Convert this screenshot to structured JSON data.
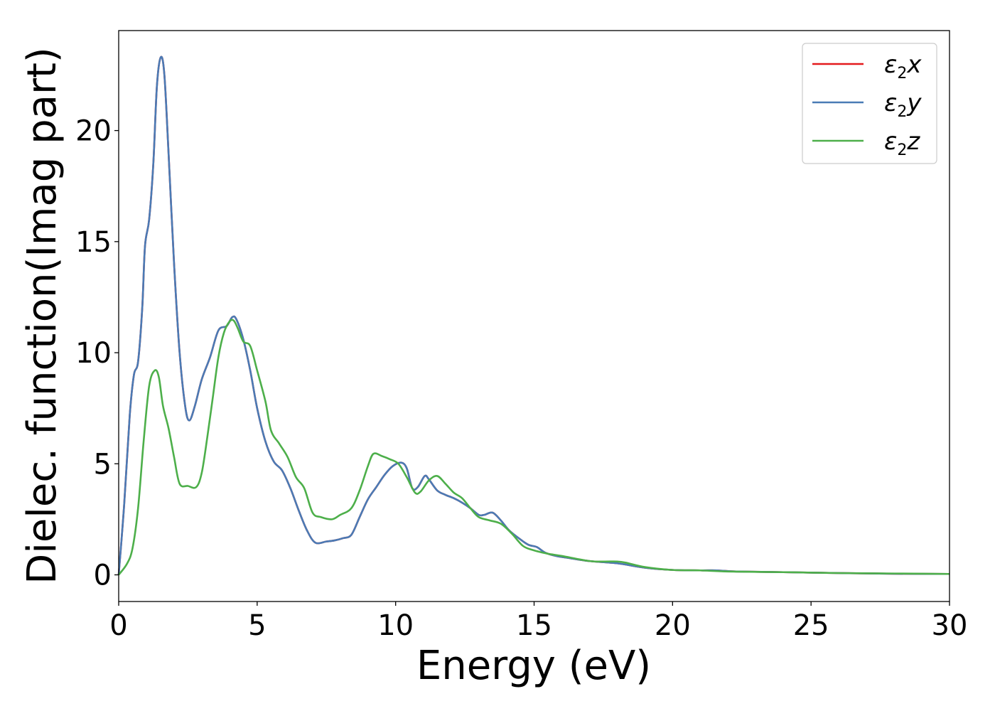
{
  "chart_data": {
    "type": "line",
    "xlabel": "Energy (eV)",
    "ylabel": "Dielec. function(Imag part)",
    "xlim": [
      0,
      30
    ],
    "ylim": [
      -1.2,
      24.5
    ],
    "xticks": [
      0,
      5,
      10,
      15,
      20,
      25,
      30
    ],
    "yticks": [
      0,
      5,
      10,
      15,
      20
    ],
    "grid": false,
    "legend_position": "top-right",
    "series": [
      {
        "name": "ε2x",
        "legend_main": "ε",
        "legend_sub": "2",
        "legend_var": "x",
        "color": "#e41a1c",
        "points": [
          [
            0,
            0
          ],
          [
            0.2,
            3.2
          ],
          [
            0.4,
            7.2
          ],
          [
            0.55,
            9.0
          ],
          [
            0.7,
            9.6
          ],
          [
            0.85,
            12.0
          ],
          [
            0.95,
            14.8
          ],
          [
            1.1,
            16.0
          ],
          [
            1.25,
            18.5
          ],
          [
            1.38,
            22.0
          ],
          [
            1.52,
            23.3
          ],
          [
            1.65,
            22.5
          ],
          [
            1.8,
            19.0
          ],
          [
            2.0,
            14.0
          ],
          [
            2.2,
            10.0
          ],
          [
            2.4,
            7.6
          ],
          [
            2.55,
            6.95
          ],
          [
            2.75,
            7.6
          ],
          [
            3.0,
            8.8
          ],
          [
            3.3,
            9.8
          ],
          [
            3.6,
            11.0
          ],
          [
            3.9,
            11.2
          ],
          [
            4.1,
            11.6
          ],
          [
            4.25,
            11.5
          ],
          [
            4.5,
            10.6
          ],
          [
            4.75,
            9.2
          ],
          [
            5.0,
            7.5
          ],
          [
            5.3,
            6.0
          ],
          [
            5.6,
            5.1
          ],
          [
            5.9,
            4.7
          ],
          [
            6.2,
            3.9
          ],
          [
            6.5,
            2.9
          ],
          [
            6.8,
            2.0
          ],
          [
            7.1,
            1.45
          ],
          [
            7.5,
            1.5
          ],
          [
            7.8,
            1.55
          ],
          [
            8.1,
            1.65
          ],
          [
            8.4,
            1.8
          ],
          [
            8.7,
            2.6
          ],
          [
            9.0,
            3.4
          ],
          [
            9.3,
            3.95
          ],
          [
            9.6,
            4.5
          ],
          [
            9.9,
            4.9
          ],
          [
            10.2,
            5.05
          ],
          [
            10.4,
            4.8
          ],
          [
            10.6,
            3.9
          ],
          [
            10.8,
            3.95
          ],
          [
            11.05,
            4.45
          ],
          [
            11.2,
            4.3
          ],
          [
            11.5,
            3.8
          ],
          [
            11.8,
            3.6
          ],
          [
            12.1,
            3.45
          ],
          [
            12.4,
            3.25
          ],
          [
            12.7,
            3.0
          ],
          [
            13.0,
            2.7
          ],
          [
            13.2,
            2.7
          ],
          [
            13.5,
            2.8
          ],
          [
            13.8,
            2.45
          ],
          [
            14.1,
            2.0
          ],
          [
            14.5,
            1.6
          ],
          [
            14.8,
            1.35
          ],
          [
            15.1,
            1.25
          ],
          [
            15.4,
            1.0
          ],
          [
            15.8,
            0.85
          ],
          [
            16.3,
            0.75
          ],
          [
            17.0,
            0.62
          ],
          [
            18.0,
            0.52
          ],
          [
            19.0,
            0.32
          ],
          [
            20.0,
            0.22
          ],
          [
            21.0,
            0.2
          ],
          [
            21.6,
            0.2
          ],
          [
            22.3,
            0.15
          ],
          [
            24.0,
            0.12
          ],
          [
            26.0,
            0.08
          ],
          [
            28.0,
            0.05
          ],
          [
            30.0,
            0.04
          ]
        ]
      },
      {
        "name": "ε2y",
        "legend_main": "ε",
        "legend_sub": "2",
        "legend_var": "y",
        "color": "#4a7bb5",
        "points": [
          [
            0,
            0
          ],
          [
            0.2,
            3.2
          ],
          [
            0.4,
            7.2
          ],
          [
            0.55,
            9.0
          ],
          [
            0.7,
            9.6
          ],
          [
            0.85,
            12.0
          ],
          [
            0.95,
            14.8
          ],
          [
            1.1,
            16.0
          ],
          [
            1.25,
            18.5
          ],
          [
            1.38,
            22.0
          ],
          [
            1.52,
            23.3
          ],
          [
            1.65,
            22.5
          ],
          [
            1.8,
            19.0
          ],
          [
            2.0,
            14.0
          ],
          [
            2.2,
            10.0
          ],
          [
            2.4,
            7.6
          ],
          [
            2.55,
            6.95
          ],
          [
            2.75,
            7.6
          ],
          [
            3.0,
            8.8
          ],
          [
            3.3,
            9.8
          ],
          [
            3.6,
            11.0
          ],
          [
            3.9,
            11.2
          ],
          [
            4.1,
            11.6
          ],
          [
            4.25,
            11.5
          ],
          [
            4.5,
            10.6
          ],
          [
            4.75,
            9.2
          ],
          [
            5.0,
            7.5
          ],
          [
            5.3,
            6.0
          ],
          [
            5.6,
            5.1
          ],
          [
            5.9,
            4.7
          ],
          [
            6.2,
            3.9
          ],
          [
            6.5,
            2.9
          ],
          [
            6.8,
            2.0
          ],
          [
            7.1,
            1.45
          ],
          [
            7.5,
            1.5
          ],
          [
            7.8,
            1.55
          ],
          [
            8.1,
            1.65
          ],
          [
            8.4,
            1.8
          ],
          [
            8.7,
            2.6
          ],
          [
            9.0,
            3.4
          ],
          [
            9.3,
            3.95
          ],
          [
            9.6,
            4.5
          ],
          [
            9.9,
            4.9
          ],
          [
            10.2,
            5.05
          ],
          [
            10.4,
            4.8
          ],
          [
            10.6,
            3.9
          ],
          [
            10.8,
            3.95
          ],
          [
            11.05,
            4.45
          ],
          [
            11.2,
            4.3
          ],
          [
            11.5,
            3.8
          ],
          [
            11.8,
            3.6
          ],
          [
            12.1,
            3.45
          ],
          [
            12.4,
            3.25
          ],
          [
            12.7,
            3.0
          ],
          [
            13.0,
            2.7
          ],
          [
            13.2,
            2.7
          ],
          [
            13.5,
            2.8
          ],
          [
            13.8,
            2.45
          ],
          [
            14.1,
            2.0
          ],
          [
            14.5,
            1.6
          ],
          [
            14.8,
            1.35
          ],
          [
            15.1,
            1.25
          ],
          [
            15.4,
            1.0
          ],
          [
            15.8,
            0.85
          ],
          [
            16.3,
            0.75
          ],
          [
            17.0,
            0.62
          ],
          [
            18.0,
            0.52
          ],
          [
            19.0,
            0.32
          ],
          [
            20.0,
            0.22
          ],
          [
            21.0,
            0.2
          ],
          [
            21.6,
            0.2
          ],
          [
            22.3,
            0.15
          ],
          [
            24.0,
            0.12
          ],
          [
            26.0,
            0.08
          ],
          [
            28.0,
            0.05
          ],
          [
            30.0,
            0.04
          ]
        ]
      },
      {
        "name": "ε2z",
        "legend_main": "ε",
        "legend_sub": "2",
        "legend_var": "z",
        "color": "#4daf4a",
        "points": [
          [
            0,
            0
          ],
          [
            0.3,
            0.5
          ],
          [
            0.5,
            1.2
          ],
          [
            0.7,
            3.0
          ],
          [
            0.9,
            6.0
          ],
          [
            1.1,
            8.5
          ],
          [
            1.3,
            9.2
          ],
          [
            1.45,
            8.9
          ],
          [
            1.6,
            7.6
          ],
          [
            1.8,
            6.6
          ],
          [
            2.0,
            5.3
          ],
          [
            2.2,
            4.1
          ],
          [
            2.5,
            4.0
          ],
          [
            2.8,
            3.95
          ],
          [
            3.0,
            4.6
          ],
          [
            3.2,
            6.2
          ],
          [
            3.4,
            8.0
          ],
          [
            3.6,
            9.8
          ],
          [
            3.8,
            10.9
          ],
          [
            4.0,
            11.4
          ],
          [
            4.15,
            11.45
          ],
          [
            4.3,
            11.1
          ],
          [
            4.5,
            10.5
          ],
          [
            4.75,
            10.3
          ],
          [
            5.0,
            9.2
          ],
          [
            5.3,
            7.8
          ],
          [
            5.5,
            6.5
          ],
          [
            5.8,
            5.9
          ],
          [
            6.1,
            5.3
          ],
          [
            6.4,
            4.4
          ],
          [
            6.7,
            3.9
          ],
          [
            7.0,
            2.8
          ],
          [
            7.3,
            2.6
          ],
          [
            7.7,
            2.5
          ],
          [
            8.0,
            2.7
          ],
          [
            8.4,
            3.0
          ],
          [
            8.7,
            3.8
          ],
          [
            9.0,
            4.9
          ],
          [
            9.2,
            5.45
          ],
          [
            9.5,
            5.35
          ],
          [
            9.8,
            5.2
          ],
          [
            10.1,
            5.0
          ],
          [
            10.4,
            4.4
          ],
          [
            10.7,
            3.7
          ],
          [
            10.9,
            3.75
          ],
          [
            11.2,
            4.25
          ],
          [
            11.5,
            4.45
          ],
          [
            11.8,
            4.1
          ],
          [
            12.1,
            3.7
          ],
          [
            12.4,
            3.45
          ],
          [
            12.7,
            3.0
          ],
          [
            13.0,
            2.6
          ],
          [
            13.4,
            2.45
          ],
          [
            13.8,
            2.3
          ],
          [
            14.2,
            1.85
          ],
          [
            14.6,
            1.3
          ],
          [
            15.0,
            1.1
          ],
          [
            15.5,
            0.95
          ],
          [
            16.0,
            0.85
          ],
          [
            17.0,
            0.62
          ],
          [
            17.5,
            0.6
          ],
          [
            18.0,
            0.6
          ],
          [
            18.3,
            0.55
          ],
          [
            19.0,
            0.35
          ],
          [
            20.0,
            0.22
          ],
          [
            21.0,
            0.2
          ],
          [
            22.0,
            0.15
          ],
          [
            24.0,
            0.12
          ],
          [
            26.0,
            0.08
          ],
          [
            28.0,
            0.06
          ],
          [
            30.0,
            0.04
          ]
        ]
      }
    ]
  }
}
